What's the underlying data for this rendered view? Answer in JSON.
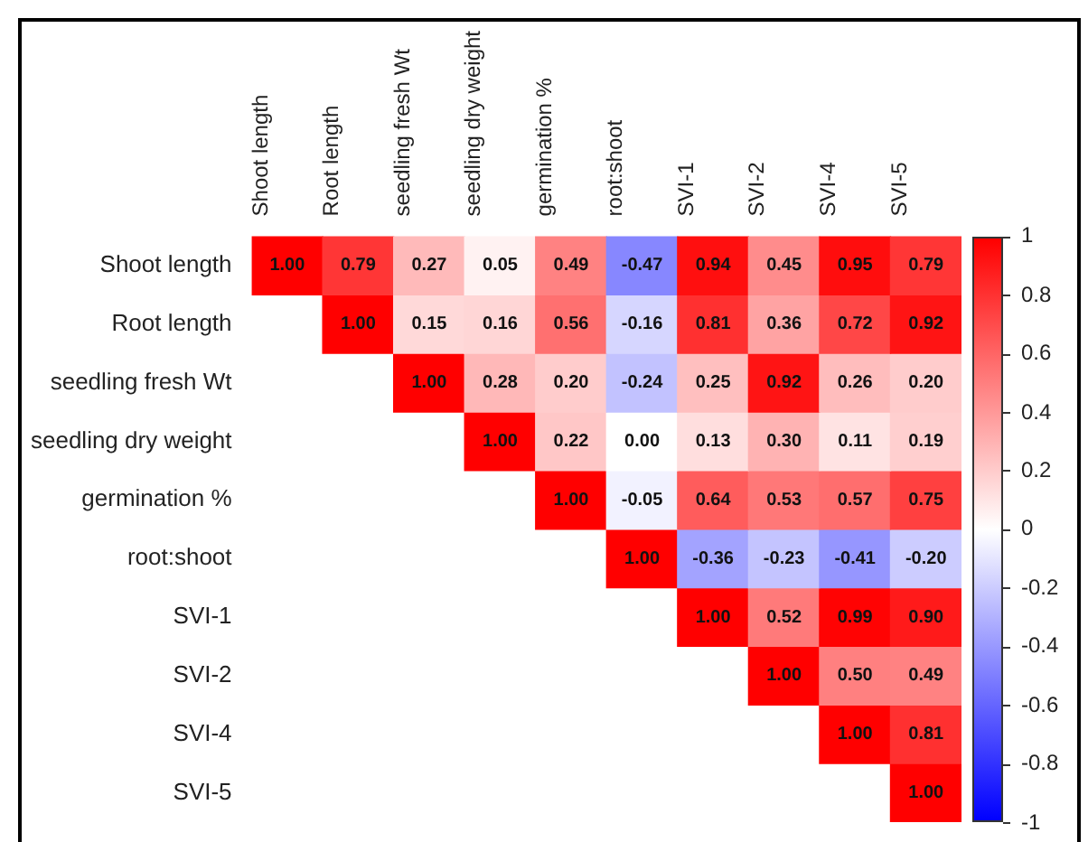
{
  "chart_data": {
    "type": "heatmap",
    "categories": [
      "Shoot length",
      "Root length",
      "seedling fresh Wt",
      "seedling dry weight",
      "germination %",
      "root:shoot",
      "SVI-1",
      "SVI-2",
      "SVI-4",
      "SVI-5"
    ],
    "y_categories": [
      "Shoot length",
      "Root length",
      "seedling fresh Wt",
      "seedling dry weight",
      "germination %",
      "root:shoot",
      "SVI-1",
      "SVI-2",
      "SVI-4",
      "SVI-5"
    ],
    "cells": [
      [
        1.0,
        0.79,
        0.27,
        0.05,
        0.49,
        -0.47,
        0.94,
        0.45,
        0.95,
        0.79
      ],
      [
        null,
        1.0,
        0.15,
        0.16,
        0.56,
        -0.16,
        0.81,
        0.36,
        0.72,
        0.92
      ],
      [
        null,
        null,
        1.0,
        0.28,
        0.2,
        -0.24,
        0.25,
        0.92,
        0.26,
        0.2
      ],
      [
        null,
        null,
        null,
        1.0,
        0.22,
        0.0,
        0.13,
        0.3,
        0.11,
        0.19
      ],
      [
        null,
        null,
        null,
        null,
        1.0,
        -0.05,
        0.64,
        0.53,
        0.57,
        0.75
      ],
      [
        null,
        null,
        null,
        null,
        null,
        1.0,
        -0.36,
        -0.23,
        -0.41,
        -0.2
      ],
      [
        null,
        null,
        null,
        null,
        null,
        null,
        1.0,
        0.52,
        0.99,
        0.9
      ],
      [
        null,
        null,
        null,
        null,
        null,
        null,
        null,
        1.0,
        0.5,
        0.49
      ],
      [
        null,
        null,
        null,
        null,
        null,
        null,
        null,
        null,
        1.0,
        0.81
      ],
      [
        null,
        null,
        null,
        null,
        null,
        null,
        null,
        null,
        null,
        1.0
      ]
    ],
    "cell_labels": [
      [
        "1.00",
        "0.79",
        "0.27",
        "0.05",
        "0.49",
        "-0.47",
        "0.94",
        "0.45",
        "0.95",
        "0.79"
      ],
      [
        null,
        "1.00",
        "0.15",
        "0.16",
        "0.56",
        "-0.16",
        "0.81",
        "0.36",
        "0.72",
        "0.92"
      ],
      [
        null,
        null,
        "1.00",
        "0.28",
        "0.20",
        "-0.24",
        "0.25",
        "0.92",
        "0.26",
        "0.20"
      ],
      [
        null,
        null,
        null,
        "1.00",
        "0.22",
        "0.00",
        "0.13",
        "0.30",
        "0.11",
        "0.19"
      ],
      [
        null,
        null,
        null,
        null,
        "1.00",
        "-0.05",
        "0.64",
        "0.53",
        "0.57",
        "0.75"
      ],
      [
        null,
        null,
        null,
        null,
        null,
        "1.00",
        "-0.36",
        "-0.23",
        "-0.41",
        "-0.20"
      ],
      [
        null,
        null,
        null,
        null,
        null,
        null,
        "1.00",
        "0.52",
        "0.99",
        "0.90"
      ],
      [
        null,
        null,
        null,
        null,
        null,
        null,
        null,
        "1.00",
        "0.50",
        "0.49"
      ],
      [
        null,
        null,
        null,
        null,
        null,
        null,
        null,
        null,
        "1.00",
        "0.81"
      ],
      [
        null,
        null,
        null,
        null,
        null,
        null,
        null,
        null,
        null,
        "1.00"
      ]
    ],
    "clim": [
      -1,
      1
    ],
    "cticks": [
      1,
      0.8,
      0.6,
      0.4,
      0.2,
      0,
      -0.2,
      -0.4,
      -0.6,
      -0.8,
      -1
    ],
    "data_labels": true
  }
}
